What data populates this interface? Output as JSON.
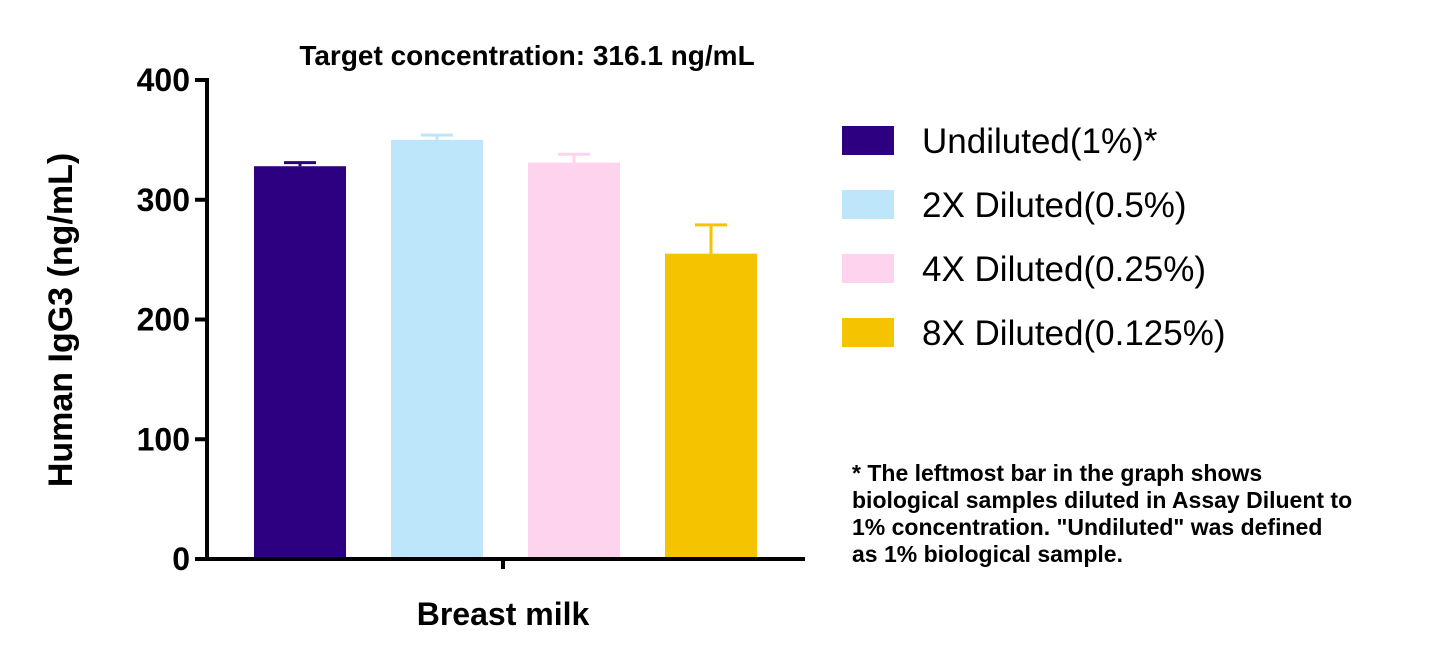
{
  "chart_data": {
    "type": "bar",
    "title": "Target concentration: 316.1 ng/mL",
    "xlabel": "Breast milk",
    "ylabel": "Human IgG3 (ng/mL)",
    "ylim": [
      0,
      400
    ],
    "yticks": [
      0,
      100,
      200,
      300,
      400
    ],
    "categories": [
      "Breast milk"
    ],
    "legend_position": "right",
    "series": [
      {
        "name": "Undiluted(1%)*",
        "color": "#2c0080",
        "values": [
          328
        ],
        "error": [
          3
        ]
      },
      {
        "name": "2X Diluted(0.5%)",
        "color": "#bde6fa",
        "values": [
          350
        ],
        "error": [
          4
        ]
      },
      {
        "name": "4X Diluted(0.25%)",
        "color": "#fdd3ee",
        "values": [
          331
        ],
        "error": [
          7
        ]
      },
      {
        "name": "8X Diluted(0.125%)",
        "color": "#f5c400",
        "values": [
          255
        ],
        "error": [
          24
        ]
      }
    ]
  },
  "note": {
    "lines": [
      "* The leftmost bar in the graph shows",
      "biological samples diluted in Assay Diluent to",
      "1% concentration. \"Undiluted\" was defined",
      "as 1% biological sample."
    ]
  }
}
